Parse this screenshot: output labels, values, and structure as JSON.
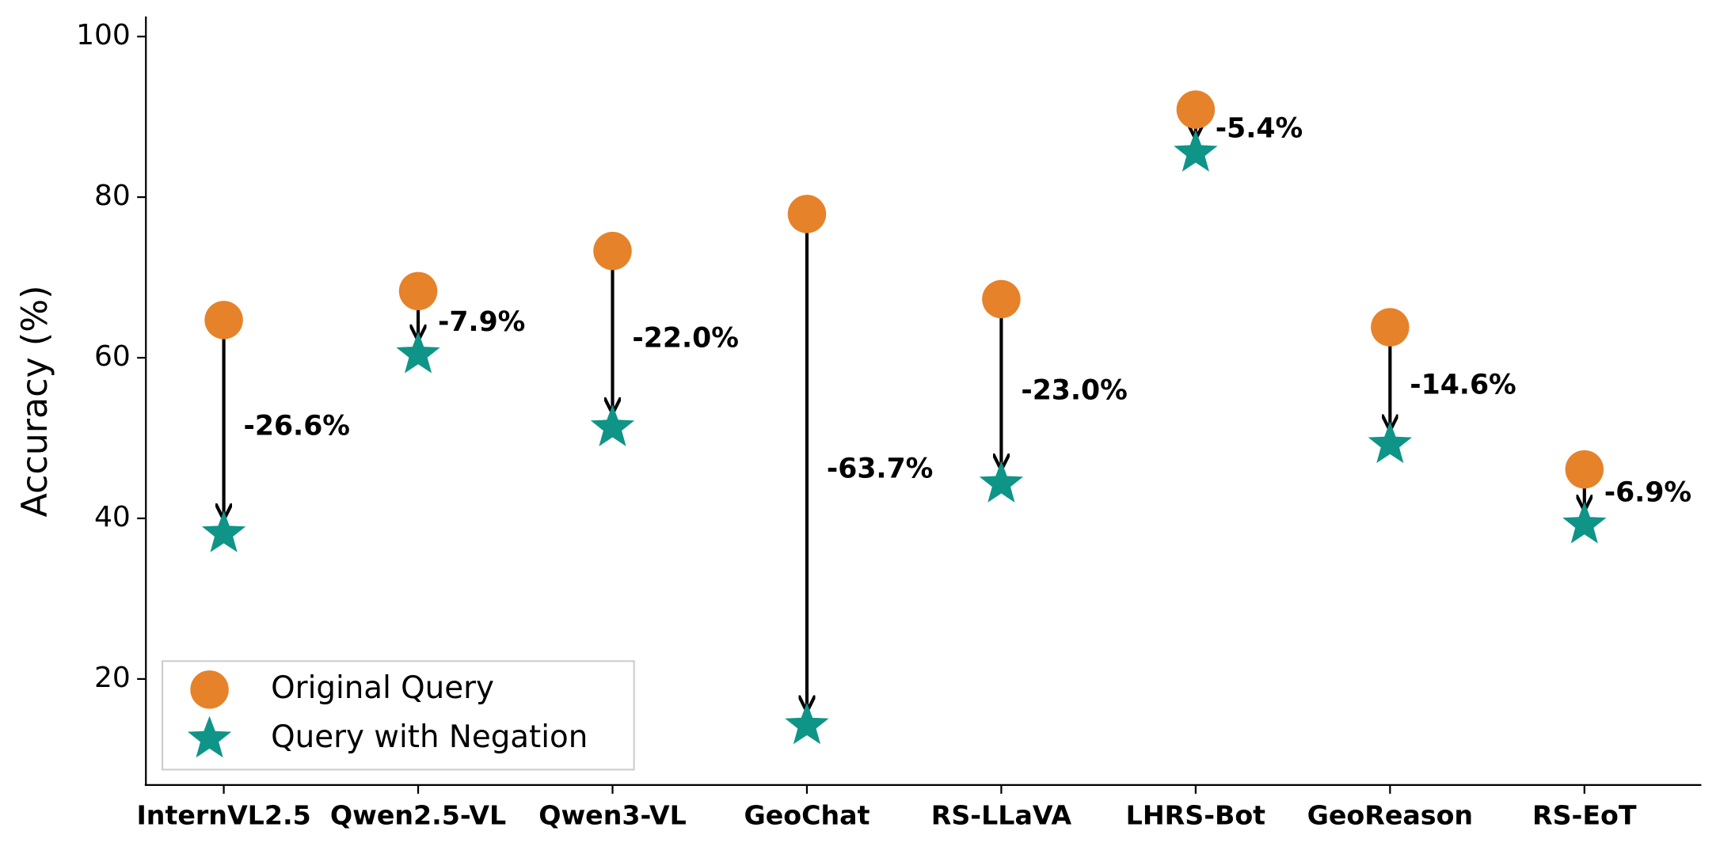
{
  "chart_data": {
    "type": "dumbbell-arrow",
    "ylabel": "Accuracy (%)",
    "categories": [
      "InternVL2.5",
      "Qwen2.5-VL",
      "Qwen3-VL",
      "GeoChat",
      "RS-LLaVA",
      "LHRS-Bot",
      "GeoReason",
      "RS-EoT"
    ],
    "series": [
      {
        "name": "Original Query",
        "color": "#e6822a",
        "values": [
          64.7,
          68.3,
          73.3,
          77.9,
          67.3,
          90.9,
          63.8,
          46.1
        ]
      },
      {
        "name": "Query with Negation",
        "color": "#0f9488",
        "values": [
          38.1,
          60.4,
          51.3,
          14.2,
          44.3,
          85.5,
          49.2,
          39.2
        ]
      }
    ],
    "change_labels": [
      "-26.6%",
      "-7.9%",
      "-22.0%",
      "-63.7%",
      "-23.0%",
      "-5.4%",
      "-14.6%",
      "-6.9%"
    ],
    "ylim": [
      6.8,
      102.5
    ],
    "yticks": [
      20,
      40,
      60,
      80,
      100
    ],
    "legend": "lower left"
  }
}
